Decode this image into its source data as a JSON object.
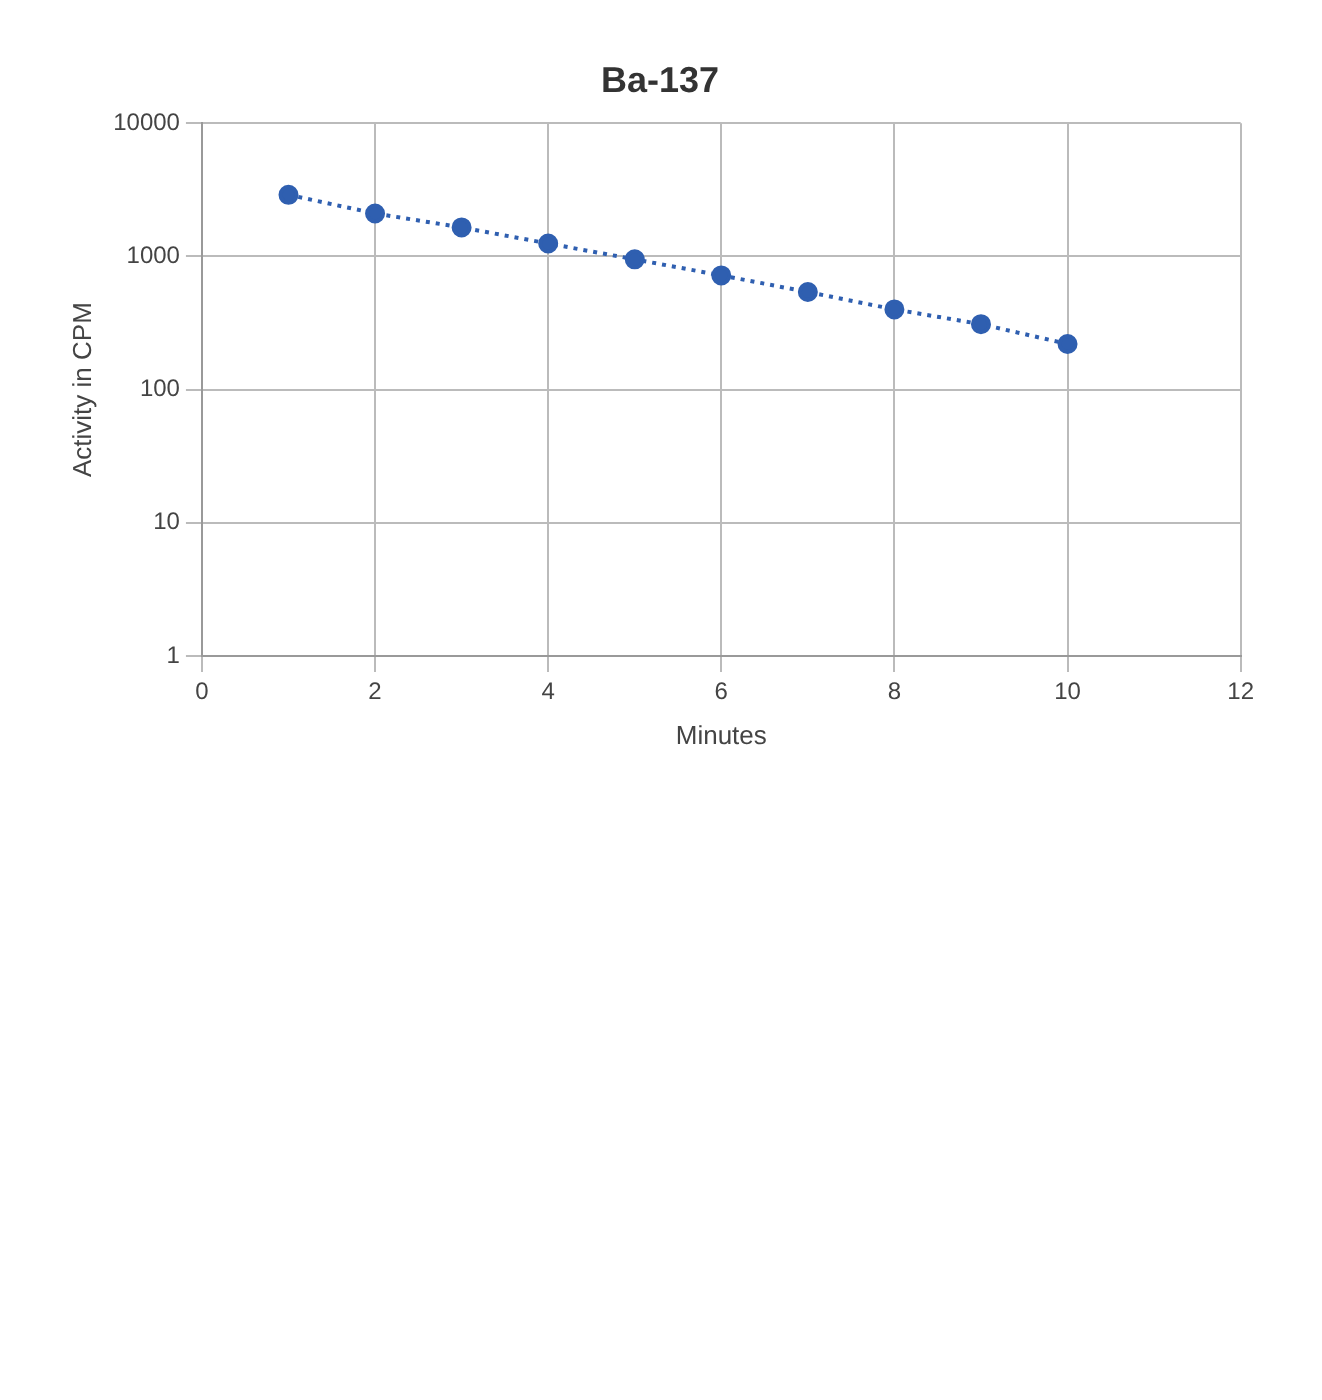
{
  "chart_data": {
    "type": "line",
    "title": "Ba-137",
    "xlabel": "Minutes",
    "ylabel": "Activity in CPM",
    "x": [
      1,
      2,
      3,
      4,
      5,
      6,
      7,
      8,
      9,
      10
    ],
    "series": [
      {
        "color": "#2f5fb0",
        "values": [
          2900,
          2100,
          1650,
          1250,
          950,
          720,
          540,
          400,
          310,
          220
        ]
      }
    ],
    "xlim": [
      0,
      12
    ],
    "xticks": [
      0,
      2,
      4,
      6,
      8,
      10,
      12
    ],
    "ylim": [
      1,
      10000
    ],
    "yticks": [
      1,
      10,
      100,
      1000,
      10000
    ],
    "log": "y",
    "grid": true,
    "marker": "circle",
    "line_style": "dotted",
    "legend": false
  }
}
